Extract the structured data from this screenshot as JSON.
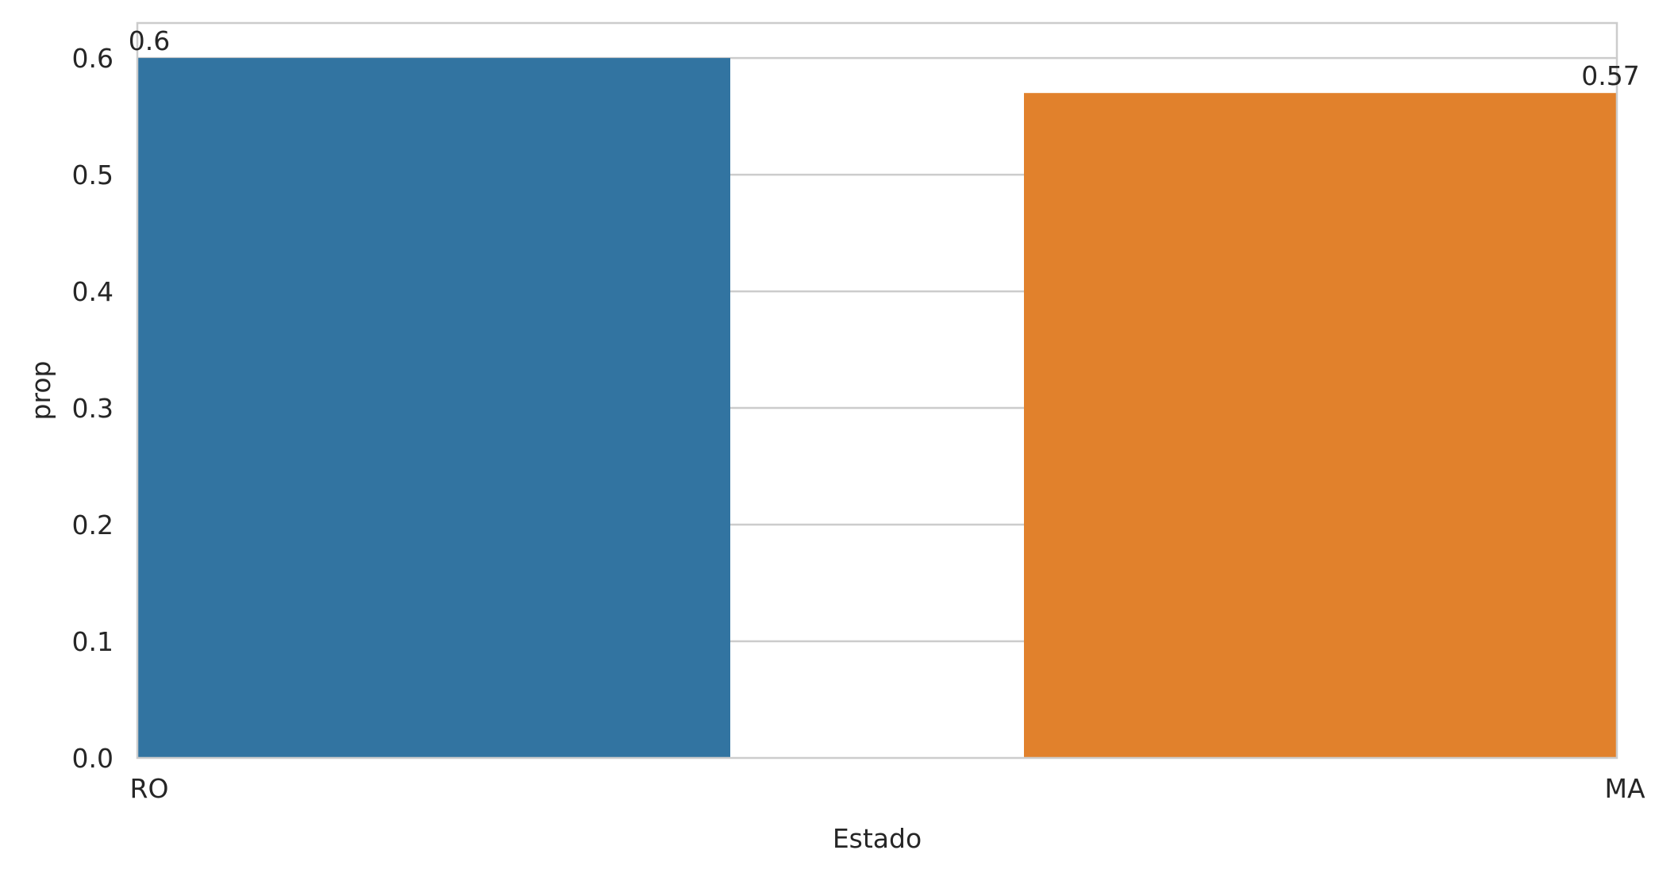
{
  "chart_data": {
    "type": "bar",
    "title": "",
    "xlabel": "Estado",
    "ylabel": "prop",
    "categories": [
      "RO",
      "MA"
    ],
    "values": [
      0.6,
      0.57
    ],
    "data_labels": [
      "0.6",
      "0.57"
    ],
    "colors": [
      "#3274a1",
      "#e1812c"
    ],
    "ylim": [
      0,
      0.63
    ],
    "yticks": [
      0.0,
      0.1,
      0.2,
      0.3,
      0.4,
      0.5,
      0.6
    ],
    "ytick_labels": [
      "0.0",
      "0.1",
      "0.2",
      "0.3",
      "0.4",
      "0.5",
      "0.6"
    ],
    "grid": true,
    "grid_color": "#cccccc",
    "spine_color": "#cccccc",
    "legend": "none"
  }
}
